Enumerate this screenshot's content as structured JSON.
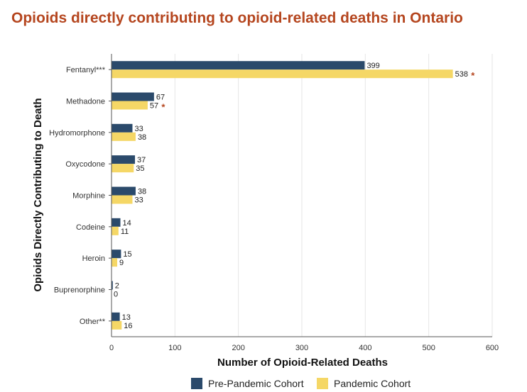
{
  "chart_data": {
    "type": "bar",
    "orientation": "horizontal",
    "title": "Opioids directly contributing to opioid-related deaths in Ontario",
    "xlabel": "Number of Opioid-Related Deaths",
    "ylabel": "Opioids Directly Contributing to Death",
    "xlim": [
      0,
      600
    ],
    "xticks": [
      0,
      100,
      200,
      300,
      400,
      500,
      600
    ],
    "grid": true,
    "legend_position": "bottom",
    "categories": [
      "Fentanyl***",
      "Methadone",
      "Hydromorphone",
      "Oxycodone",
      "Morphine",
      "Codeine",
      "Heroin",
      "Buprenorphine",
      "Other**"
    ],
    "series": [
      {
        "name": "Pre-Pandemic Cohort",
        "color": "#2b4a6b",
        "values": [
          399,
          67,
          33,
          37,
          38,
          14,
          15,
          2,
          13
        ]
      },
      {
        "name": "Pandemic Cohort",
        "color": "#f5d766",
        "values": [
          538,
          57,
          38,
          35,
          33,
          11,
          9,
          0,
          16
        ]
      }
    ],
    "significance_marker": "*",
    "significant": [
      {
        "category": "Fentanyl***",
        "series": "Pandemic Cohort"
      },
      {
        "category": "Methadone",
        "series": "Pandemic Cohort"
      }
    ]
  }
}
